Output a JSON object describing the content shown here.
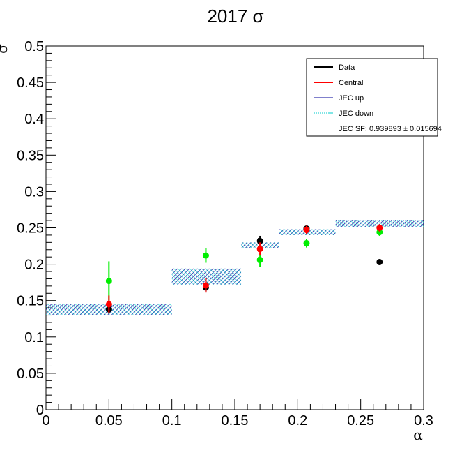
{
  "chart_data": {
    "type": "scatter",
    "title": "2017 σ",
    "xlabel": "α",
    "ylabel": "σ",
    "xlim": [
      0,
      0.3
    ],
    "ylim": [
      0,
      0.5
    ],
    "x_ticks": [
      "0",
      "0.05",
      "0.1",
      "0.15",
      "0.2",
      "0.25",
      "0.3"
    ],
    "y_ticks": [
      "0",
      "0.05",
      "0.1",
      "0.15",
      "0.2",
      "0.25",
      "0.3",
      "0.35",
      "0.4",
      "0.45",
      "0.5"
    ],
    "legend": {
      "position": "top-right",
      "entries": [
        {
          "label": "Data",
          "color": "#000000"
        },
        {
          "label": "Central",
          "color": "#ff0000"
        },
        {
          "label": "JEC up",
          "color": "#000099"
        },
        {
          "label": "JEC down",
          "color": "#00cccc"
        },
        {
          "label": "JEC SF: 0.939893 ± 0.015694",
          "color": ""
        }
      ]
    },
    "series": [
      {
        "name": "Data",
        "color": "#000000",
        "points": [
          {
            "x": 0.05,
            "y": 0.138,
            "err": 0.006
          },
          {
            "x": 0.127,
            "y": 0.168,
            "err": 0.006
          },
          {
            "x": 0.17,
            "y": 0.232,
            "err": 0.007
          },
          {
            "x": 0.207,
            "y": 0.249,
            "err": 0.005
          },
          {
            "x": 0.265,
            "y": 0.203,
            "err": 0.002
          }
        ]
      },
      {
        "name": "Central",
        "color": "#ff0000",
        "points": [
          {
            "x": 0.05,
            "y": 0.145,
            "err": 0.012
          },
          {
            "x": 0.127,
            "y": 0.171,
            "err": 0.01
          },
          {
            "x": 0.17,
            "y": 0.221,
            "err": 0.009
          },
          {
            "x": 0.207,
            "y": 0.247,
            "err": 0.006
          },
          {
            "x": 0.265,
            "y": 0.25,
            "err": 0.005
          }
        ]
      },
      {
        "name": "Green",
        "color": "#00ee00",
        "points": [
          {
            "x": 0.05,
            "y": 0.177,
            "err": 0.027
          },
          {
            "x": 0.127,
            "y": 0.212,
            "err": 0.01
          },
          {
            "x": 0.17,
            "y": 0.206,
            "err": 0.01
          },
          {
            "x": 0.207,
            "y": 0.229,
            "err": 0.006
          },
          {
            "x": 0.265,
            "y": 0.244,
            "err": 0.005
          }
        ]
      }
    ],
    "bands": [
      {
        "x0": 0.0,
        "x1": 0.1,
        "y0": 0.13,
        "y1": 0.145
      },
      {
        "x0": 0.1,
        "x1": 0.155,
        "y0": 0.172,
        "y1": 0.194
      },
      {
        "x0": 0.155,
        "x1": 0.185,
        "y0": 0.222,
        "y1": 0.23
      },
      {
        "x0": 0.185,
        "x1": 0.23,
        "y0": 0.24,
        "y1": 0.248
      },
      {
        "x0": 0.23,
        "x1": 0.3,
        "y0": 0.251,
        "y1": 0.261
      }
    ],
    "band_colors": {
      "up": "#000099",
      "down": "#00cccc"
    }
  }
}
